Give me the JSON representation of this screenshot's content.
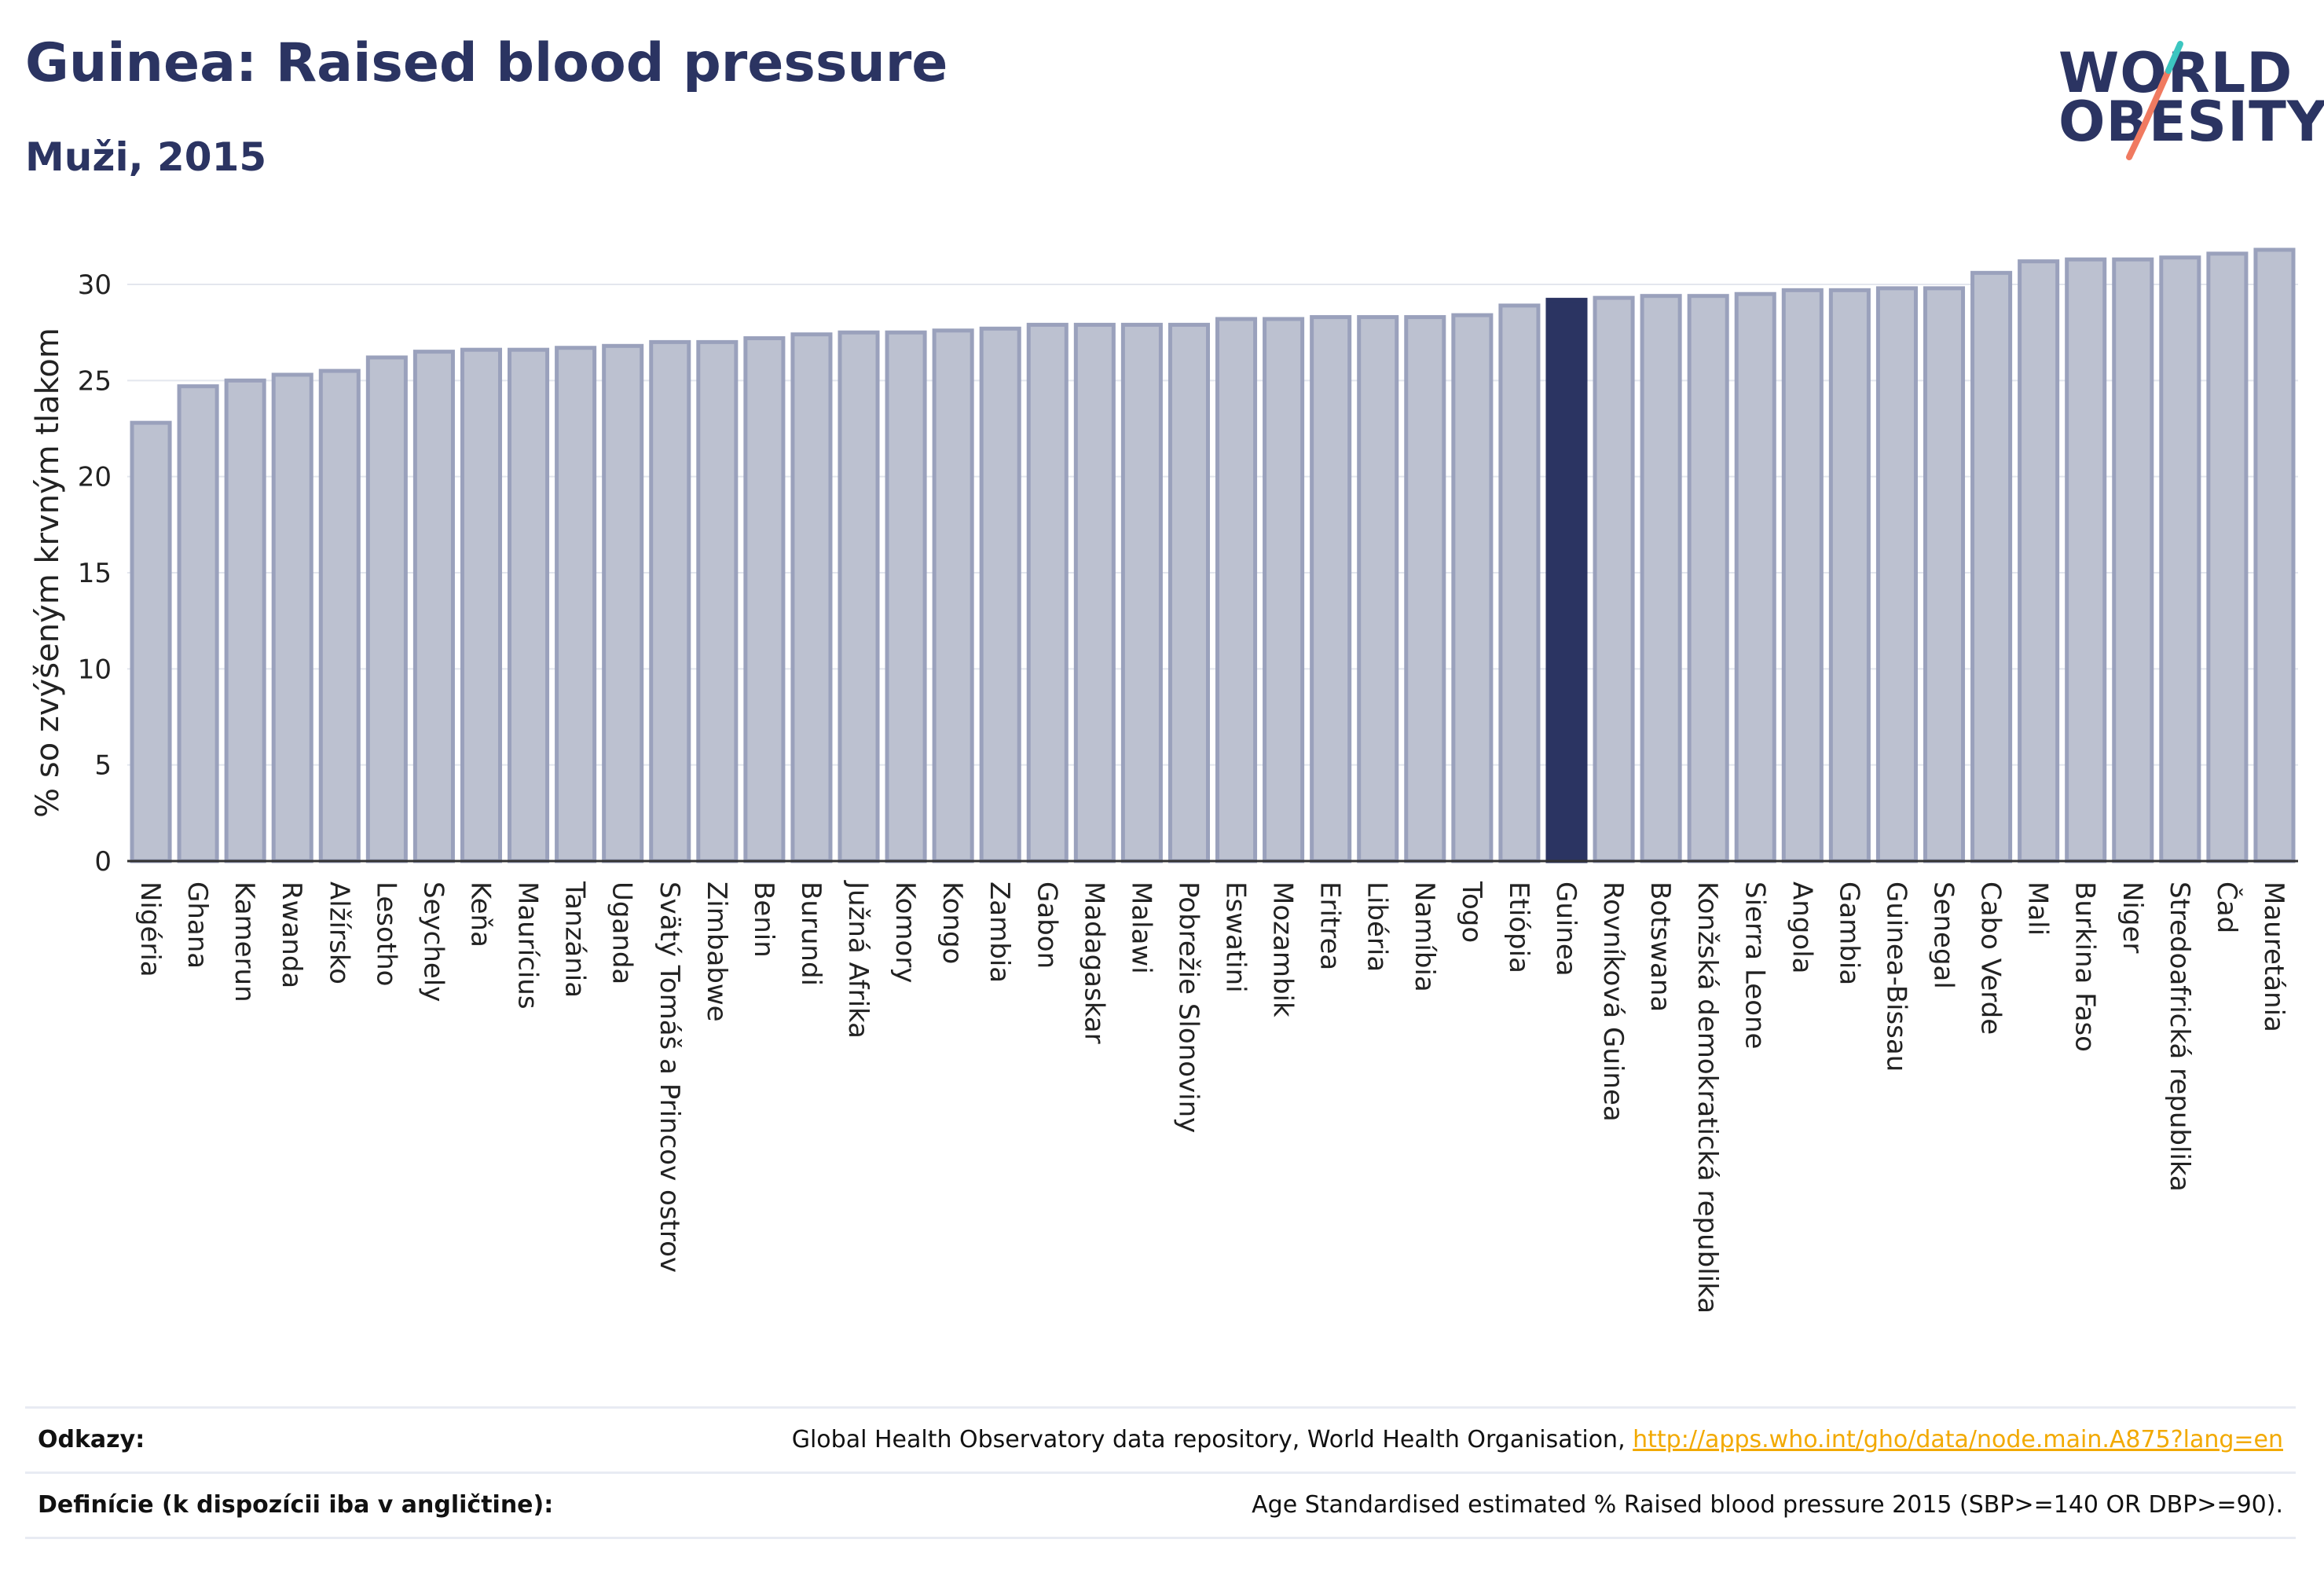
{
  "header": {
    "title": "Guinea: Raised blood pressure",
    "subtitle": "Muži, 2015"
  },
  "logo": {
    "line1": "WORLD",
    "line2": "OBESITY"
  },
  "colors": {
    "highlight": "#2b3462",
    "bar_fill": "#bcc1d0",
    "bar_stroke": "#9aa1bc",
    "accent_teal": "#3cc6c0",
    "accent_coral": "#f07a60"
  },
  "chart_data": {
    "type": "bar",
    "title": "Guinea: Raised blood pressure",
    "subtitle": "Muži, 2015",
    "ylabel": "% so zvýšeným krvným tlakom",
    "xlabel": "",
    "ylim": [
      0,
      32
    ],
    "yticks": [
      0,
      5,
      10,
      15,
      20,
      25,
      30
    ],
    "grid": true,
    "highlight": "Guinea",
    "categories": [
      "Nigéria",
      "Ghana",
      "Kamerun",
      "Rwanda",
      "Alžírsko",
      "Lesotho",
      "Seychely",
      "Keňa",
      "Maurícius",
      "Tanzánia",
      "Uganda",
      "Svätý Tomáš a Princov ostrov",
      "Zimbabwe",
      "Benin",
      "Burundi",
      "Južná Afrika",
      "Komory",
      "Kongo",
      "Zambia",
      "Gabon",
      "Madagaskar",
      "Malawi",
      "Pobrežie Slonoviny",
      "Eswatini",
      "Mozambik",
      "Eritrea",
      "Libéria",
      "Namíbia",
      "Togo",
      "Etiópia",
      "Guinea",
      "Rovníková Guinea",
      "Botswana",
      "Konžská demokratická republika",
      "Sierra Leone",
      "Angola",
      "Gambia",
      "Guinea-Bissau",
      "Senegal",
      "Cabo Verde",
      "Mali",
      "Burkina Faso",
      "Niger",
      "Stredoafrická republika",
      "Čad",
      "Mauretánia"
    ],
    "values": [
      22.8,
      24.7,
      25.0,
      25.3,
      25.5,
      26.2,
      26.5,
      26.6,
      26.6,
      26.7,
      26.8,
      27.0,
      27.0,
      27.2,
      27.4,
      27.5,
      27.5,
      27.6,
      27.7,
      27.9,
      27.9,
      27.9,
      27.9,
      28.2,
      28.2,
      28.3,
      28.3,
      28.3,
      28.4,
      28.9,
      29.2,
      29.3,
      29.4,
      29.4,
      29.5,
      29.7,
      29.7,
      29.8,
      29.8,
      30.6,
      31.2,
      31.3,
      31.3,
      31.4,
      31.6,
      31.8
    ]
  },
  "footer": {
    "refs_label": "Odkazy:",
    "refs_text": "Global Health Observatory data repository, World Health Organisation, ",
    "refs_link": "http://apps.who.int/gho/data/node.main.A875?lang=en",
    "defs_label": "Definície (k dispozícii iba v angličtine):",
    "defs_text": "Age Standardised estimated % Raised blood pressure 2015 (SBP>=140 OR DBP>=90)."
  }
}
